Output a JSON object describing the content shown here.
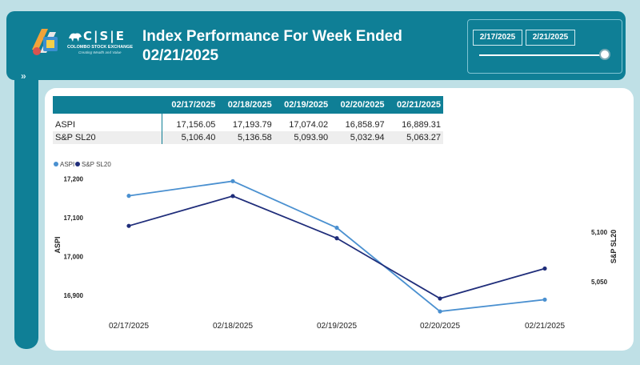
{
  "header": {
    "title": "Index Performance For Week Ended 02/21/2025",
    "logo": {
      "mark": "C|S|E",
      "name": "COLOMBO STOCK EXCHANGE",
      "tagline": "Creating Wealth and Value"
    }
  },
  "date_filter": {
    "start": "2/17/2025",
    "end": "2/21/2025"
  },
  "table": {
    "columns": [
      "",
      "02/17/2025",
      "02/18/2025",
      "02/19/2025",
      "02/20/2025",
      "02/21/2025"
    ],
    "rows": [
      {
        "name": "ASPI",
        "values": [
          "17,156.05",
          "17,193.79",
          "17,074.02",
          "16,858.97",
          "16,889.31"
        ]
      },
      {
        "name": "S&P SL20",
        "values": [
          "5,106.40",
          "5,136.58",
          "5,093.90",
          "5,032.94",
          "5,063.27"
        ]
      }
    ]
  },
  "chart_data": {
    "type": "line",
    "categories": [
      "02/17/2025",
      "02/18/2025",
      "02/19/2025",
      "02/20/2025",
      "02/21/2025"
    ],
    "series": [
      {
        "name": "ASPI",
        "axis": "left",
        "color": "#4a90d0",
        "values": [
          17156.05,
          17193.79,
          17074.02,
          16858.97,
          16889.31
        ]
      },
      {
        "name": "S&P SL20",
        "axis": "right",
        "color": "#1f2d7a",
        "values": [
          5106.4,
          5136.58,
          5093.9,
          5032.94,
          5063.27
        ]
      }
    ],
    "ylabel_left": "ASPI",
    "ylabel_right": "S&P SL20",
    "y_left": {
      "range": [
        16855,
        17215
      ],
      "ticks": [
        17200,
        17100,
        17000,
        16900
      ],
      "tick_labels": [
        "17,200",
        "17,100",
        "17,000",
        "16,900"
      ]
    },
    "y_right": {
      "range": [
        5018.3,
        5160
      ],
      "ticks": [
        5100,
        5050
      ],
      "tick_labels": [
        "5,100",
        "5,050"
      ]
    },
    "legend": {
      "position": "top-left",
      "entries": [
        "ASPI",
        "S&P SL20"
      ]
    },
    "grid": false
  }
}
